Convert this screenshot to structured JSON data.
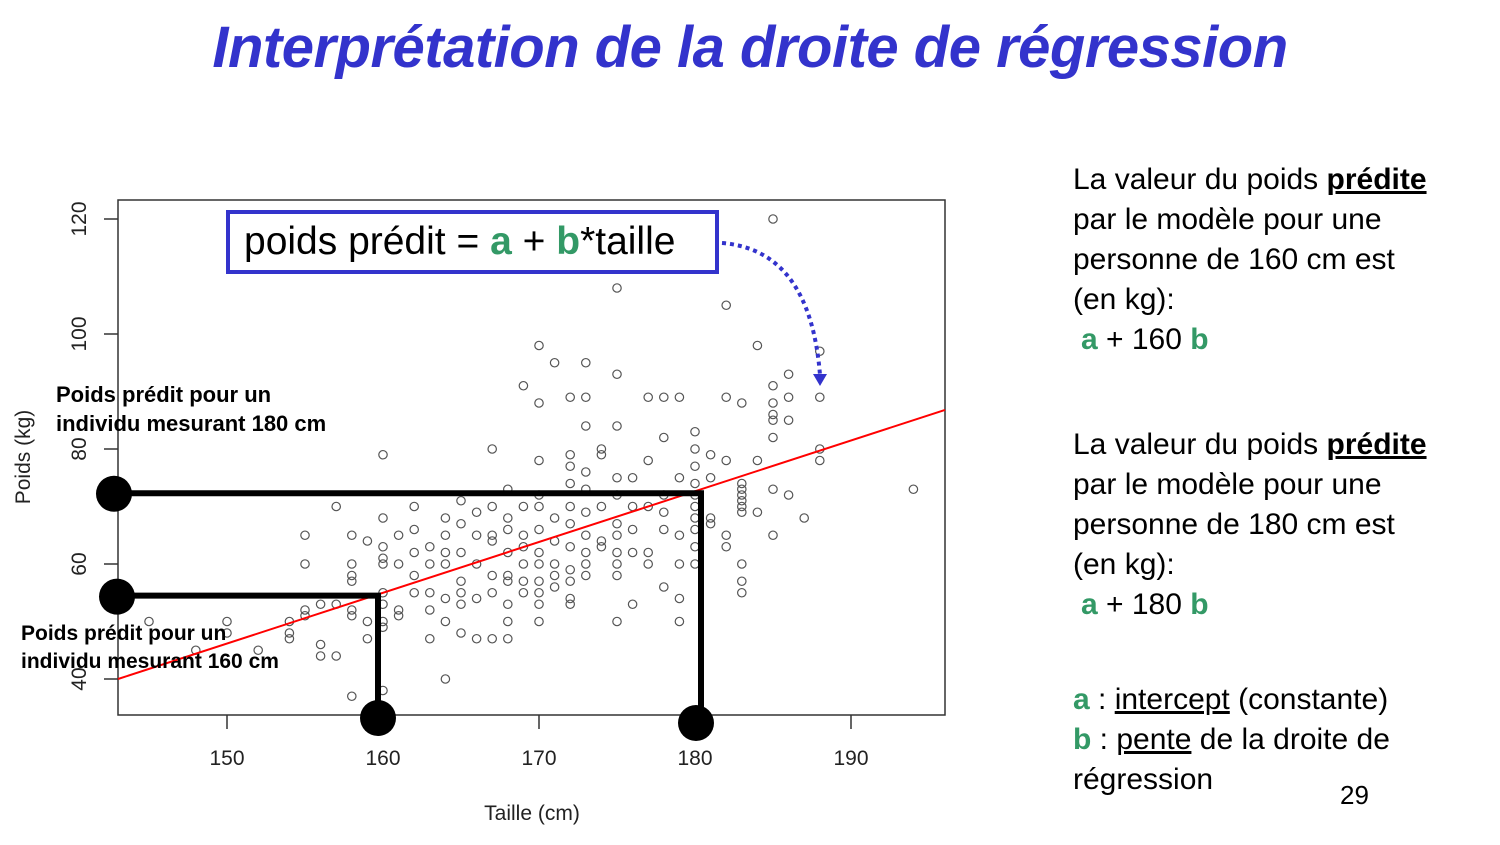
{
  "slide": {
    "title": "Interprétation de la droite de régression",
    "page_number": "29"
  },
  "formula": {
    "prefix": "poids prédit = ",
    "a": "a",
    "plus": " + ",
    "b": "b",
    "suffix": "*taille"
  },
  "annotations": {
    "pred_180_line1": "Poids prédit pour un",
    "pred_180_line2": "individu mesurant 180 cm",
    "pred_160_line1": "Poids prédit pour un",
    "pred_160_line2": "individu mesurant 160 cm"
  },
  "side_text": {
    "block1": {
      "line1_pre": "La valeur du poids ",
      "line1_bold": "prédite",
      "line2": "par le modèle pour une",
      "line3": "personne de 160 cm est",
      "line4": "(en kg):",
      "formula_a": "a",
      "formula_mid": " + 160 ",
      "formula_b": "b"
    },
    "block2": {
      "line1_pre": "La valeur du poids ",
      "line1_bold": "prédite",
      "line2": "par le modèle pour une",
      "line3": "personne de 180 cm est",
      "line4": "(en kg):",
      "formula_a": "a",
      "formula_mid": " + 180 ",
      "formula_b": "b"
    },
    "legend": {
      "a_label": "a",
      "a_sep": " : ",
      "a_term": "intercept",
      "a_rest": " (constante)",
      "b_label": "b",
      "b_sep": " : ",
      "b_term": "pente",
      "b_rest": " de la droite de",
      "b_rest2": "régression"
    }
  },
  "colors": {
    "title": "#3333cc",
    "box_border": "#3333cc",
    "coef_green": "#339966",
    "regression_line": "#ff0000",
    "points": "#555555",
    "guides": "#000000"
  },
  "chart_data": {
    "type": "scatter",
    "title": "",
    "xlabel": "Taille (cm)",
    "ylabel": "Poids (kg)",
    "xlim": [
      143,
      196
    ],
    "ylim": [
      34,
      123
    ],
    "xticks": [
      150,
      160,
      170,
      180,
      190
    ],
    "yticks": [
      40,
      60,
      80,
      100,
      120
    ],
    "grid": false,
    "regression_line": {
      "x": [
        143,
        196
      ],
      "y": [
        40,
        86.8
      ],
      "color": "#ff0000"
    },
    "guides": [
      {
        "x": 160,
        "y_pred": 54.5,
        "label": "Poids prédit pour un individu mesurant 160 cm"
      },
      {
        "x": 180,
        "y_pred": 72.3,
        "label": "Poids prédit pour un individu mesurant 180 cm"
      }
    ],
    "points": [
      [
        145,
        50
      ],
      [
        148,
        45
      ],
      [
        150,
        50
      ],
      [
        150,
        48
      ],
      [
        152,
        45
      ],
      [
        154,
        50
      ],
      [
        154,
        48
      ],
      [
        154,
        47
      ],
      [
        155,
        65
      ],
      [
        155,
        60
      ],
      [
        155,
        52
      ],
      [
        155,
        51
      ],
      [
        156,
        53
      ],
      [
        156,
        46
      ],
      [
        156,
        44
      ],
      [
        157,
        70
      ],
      [
        157,
        53
      ],
      [
        157,
        44
      ],
      [
        158,
        65
      ],
      [
        158,
        60
      ],
      [
        158,
        58
      ],
      [
        158,
        57
      ],
      [
        158,
        52
      ],
      [
        158,
        51
      ],
      [
        158,
        37
      ],
      [
        159,
        64
      ],
      [
        159,
        50
      ],
      [
        159,
        47
      ],
      [
        160,
        79
      ],
      [
        160,
        68
      ],
      [
        160,
        63
      ],
      [
        160,
        61
      ],
      [
        160,
        60
      ],
      [
        160,
        55
      ],
      [
        160,
        53
      ],
      [
        160,
        50
      ],
      [
        160,
        49
      ],
      [
        160,
        38
      ],
      [
        161,
        65
      ],
      [
        161,
        60
      ],
      [
        161,
        52
      ],
      [
        161,
        51
      ],
      [
        162,
        70
      ],
      [
        162,
        66
      ],
      [
        162,
        62
      ],
      [
        162,
        58
      ],
      [
        162,
        55
      ],
      [
        163,
        63
      ],
      [
        163,
        60
      ],
      [
        163,
        55
      ],
      [
        163,
        52
      ],
      [
        163,
        47
      ],
      [
        164,
        68
      ],
      [
        164,
        65
      ],
      [
        164,
        62
      ],
      [
        164,
        60
      ],
      [
        164,
        54
      ],
      [
        164,
        50
      ],
      [
        164,
        40
      ],
      [
        165,
        71
      ],
      [
        165,
        67
      ],
      [
        165,
        62
      ],
      [
        165,
        57
      ],
      [
        165,
        55
      ],
      [
        165,
        53
      ],
      [
        165,
        48
      ],
      [
        166,
        69
      ],
      [
        166,
        65
      ],
      [
        166,
        60
      ],
      [
        166,
        54
      ],
      [
        166,
        47
      ],
      [
        167,
        80
      ],
      [
        167,
        70
      ],
      [
        167,
        65
      ],
      [
        167,
        64
      ],
      [
        167,
        58
      ],
      [
        167,
        55
      ],
      [
        167,
        47
      ],
      [
        168,
        73
      ],
      [
        168,
        68
      ],
      [
        168,
        66
      ],
      [
        168,
        62
      ],
      [
        168,
        58
      ],
      [
        168,
        57
      ],
      [
        168,
        53
      ],
      [
        168,
        50
      ],
      [
        168,
        47
      ],
      [
        169,
        91
      ],
      [
        169,
        70
      ],
      [
        169,
        65
      ],
      [
        169,
        63
      ],
      [
        169,
        60
      ],
      [
        169,
        57
      ],
      [
        169,
        55
      ],
      [
        170,
        98
      ],
      [
        170,
        88
      ],
      [
        170,
        78
      ],
      [
        170,
        72
      ],
      [
        170,
        70
      ],
      [
        170,
        66
      ],
      [
        170,
        62
      ],
      [
        170,
        60
      ],
      [
        170,
        57
      ],
      [
        170,
        55
      ],
      [
        170,
        53
      ],
      [
        170,
        50
      ],
      [
        171,
        95
      ],
      [
        171,
        68
      ],
      [
        171,
        64
      ],
      [
        171,
        60
      ],
      [
        171,
        58
      ],
      [
        171,
        56
      ],
      [
        172,
        89
      ],
      [
        172,
        79
      ],
      [
        172,
        77
      ],
      [
        172,
        74
      ],
      [
        172,
        70
      ],
      [
        172,
        67
      ],
      [
        172,
        63
      ],
      [
        172,
        59
      ],
      [
        172,
        57
      ],
      [
        172,
        54
      ],
      [
        172,
        53
      ],
      [
        173,
        95
      ],
      [
        173,
        89
      ],
      [
        173,
        84
      ],
      [
        173,
        76
      ],
      [
        173,
        73
      ],
      [
        173,
        69
      ],
      [
        173,
        65
      ],
      [
        173,
        62
      ],
      [
        173,
        60
      ],
      [
        173,
        58
      ],
      [
        174,
        80
      ],
      [
        174,
        79
      ],
      [
        174,
        70
      ],
      [
        174,
        64
      ],
      [
        174,
        63
      ],
      [
        175,
        108
      ],
      [
        175,
        93
      ],
      [
        175,
        84
      ],
      [
        175,
        75
      ],
      [
        175,
        72
      ],
      [
        175,
        67
      ],
      [
        175,
        65
      ],
      [
        175,
        62
      ],
      [
        175,
        60
      ],
      [
        175,
        58
      ],
      [
        175,
        50
      ],
      [
        176,
        75
      ],
      [
        176,
        70
      ],
      [
        176,
        66
      ],
      [
        176,
        62
      ],
      [
        176,
        53
      ],
      [
        177,
        89
      ],
      [
        177,
        78
      ],
      [
        177,
        70
      ],
      [
        177,
        62
      ],
      [
        177,
        60
      ],
      [
        178,
        89
      ],
      [
        178,
        82
      ],
      [
        178,
        72
      ],
      [
        178,
        69
      ],
      [
        178,
        66
      ],
      [
        178,
        56
      ],
      [
        179,
        89
      ],
      [
        179,
        75
      ],
      [
        179,
        65
      ],
      [
        179,
        60
      ],
      [
        179,
        54
      ],
      [
        179,
        50
      ],
      [
        180,
        83
      ],
      [
        180,
        80
      ],
      [
        180,
        77
      ],
      [
        180,
        74
      ],
      [
        180,
        72
      ],
      [
        180,
        70
      ],
      [
        180,
        68
      ],
      [
        180,
        66
      ],
      [
        180,
        63
      ],
      [
        180,
        60
      ],
      [
        181,
        79
      ],
      [
        181,
        75
      ],
      [
        181,
        68
      ],
      [
        181,
        67
      ],
      [
        182,
        105
      ],
      [
        182,
        89
      ],
      [
        182,
        78
      ],
      [
        182,
        65
      ],
      [
        182,
        63
      ],
      [
        183,
        88
      ],
      [
        183,
        74
      ],
      [
        183,
        73
      ],
      [
        183,
        72
      ],
      [
        183,
        71
      ],
      [
        183,
        70
      ],
      [
        183,
        69
      ],
      [
        183,
        60
      ],
      [
        183,
        57
      ],
      [
        183,
        55
      ],
      [
        184,
        98
      ],
      [
        184,
        78
      ],
      [
        184,
        69
      ],
      [
        185,
        120
      ],
      [
        185,
        91
      ],
      [
        185,
        88
      ],
      [
        185,
        86
      ],
      [
        185,
        85
      ],
      [
        185,
        82
      ],
      [
        185,
        73
      ],
      [
        185,
        65
      ],
      [
        186,
        93
      ],
      [
        186,
        89
      ],
      [
        186,
        85
      ],
      [
        186,
        72
      ],
      [
        187,
        68
      ],
      [
        188,
        97
      ],
      [
        188,
        89
      ],
      [
        188,
        80
      ],
      [
        188,
        78
      ],
      [
        194,
        73
      ]
    ]
  }
}
